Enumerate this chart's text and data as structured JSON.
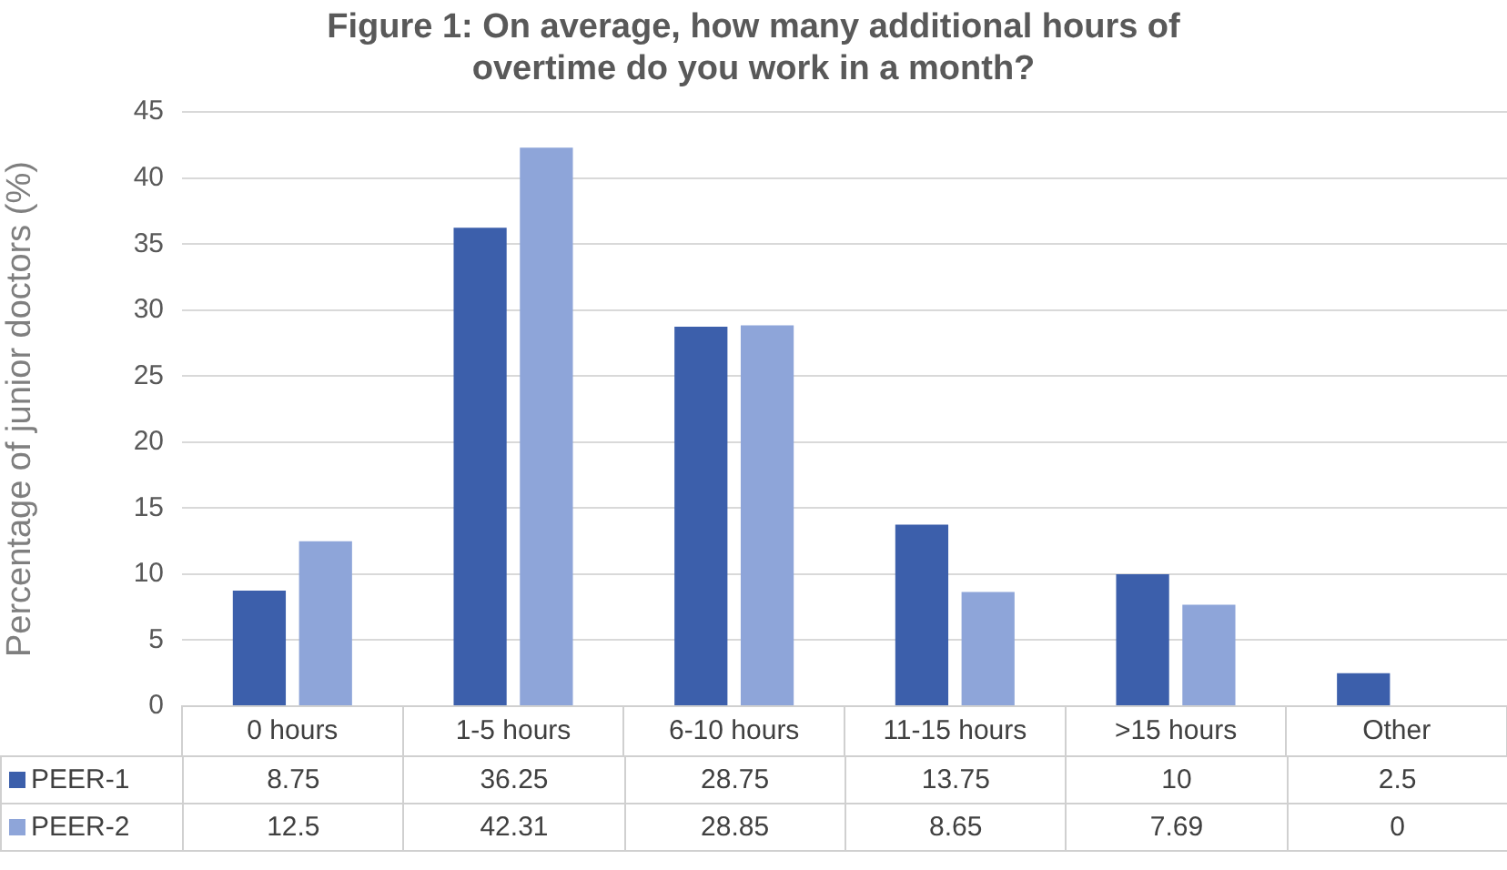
{
  "chart_data": {
    "type": "bar",
    "title": "Figure 1: On average, how many additional hours of overtime do you work in a month?",
    "ylabel": "Percentage of junior doctors (%)",
    "categories": [
      "0 hours",
      "1-5 hours",
      "6-10 hours",
      "11-15 hours",
      ">15 hours",
      "Other"
    ],
    "series": [
      {
        "name": "PEER-1",
        "color": "#3c5fab",
        "values": [
          8.75,
          36.25,
          28.75,
          13.75,
          10,
          2.5
        ]
      },
      {
        "name": "PEER-2",
        "color": "#8ea5d9",
        "values": [
          12.5,
          42.31,
          28.85,
          8.65,
          7.69,
          0
        ]
      }
    ],
    "ylim": [
      0,
      45
    ],
    "yticks": [
      0,
      5,
      10,
      15,
      20,
      25,
      30,
      35,
      40,
      45
    ],
    "grid": "y",
    "legend": "bottom",
    "data_labels": true
  }
}
